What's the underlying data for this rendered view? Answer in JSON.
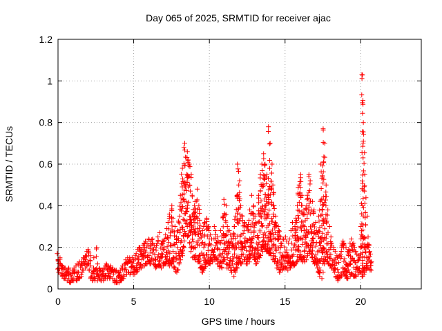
{
  "chart_data": {
    "type": "scatter",
    "title": "Day 065 of 2025, SRMTID for receiver ajac",
    "xlabel": "GPS time / hours",
    "ylabel": "SRMTID / TECUs",
    "xlim": [
      0,
      24
    ],
    "ylim": [
      0,
      1.2
    ],
    "x_ticks": [
      0,
      5,
      10,
      15,
      20
    ],
    "x_tick_labels": [
      "0",
      "5",
      "10",
      "15",
      "20"
    ],
    "y_ticks": [
      0,
      0.2,
      0.4,
      0.6,
      0.8,
      1.0,
      1.2
    ],
    "y_tick_labels": [
      "0",
      "0.2",
      "0.4",
      "0.6",
      "0.8",
      "1",
      "1.2"
    ],
    "grid": true,
    "marker": "+",
    "series_color": "#ff0000",
    "series": [
      {
        "name": "SRMTID",
        "x": [
          0.0,
          0.1,
          0.2,
          0.3,
          0.4,
          0.5,
          0.6,
          0.7,
          0.8,
          0.9,
          1.0,
          1.1,
          1.2,
          1.3,
          1.4,
          1.5,
          1.6,
          1.7,
          1.8,
          1.9,
          2.0,
          2.1,
          2.2,
          2.3,
          2.4,
          2.5,
          2.6,
          2.7,
          2.8,
          2.9,
          3.0,
          3.1,
          3.2,
          3.3,
          3.4,
          3.5,
          3.6,
          3.7,
          3.8,
          3.9,
          4.0,
          4.1,
          4.2,
          4.3,
          4.4,
          4.5,
          4.6,
          4.7,
          4.8,
          4.9,
          5.0,
          5.1,
          5.2,
          5.3,
          5.4,
          5.5,
          5.6,
          5.7,
          5.8,
          5.9,
          6.0,
          6.1,
          6.2,
          6.3,
          6.4,
          6.5,
          6.6,
          6.7,
          6.8,
          6.9,
          7.0,
          7.1,
          7.2,
          7.3,
          7.4,
          7.5,
          7.6,
          7.7,
          7.8,
          7.9,
          8.0,
          8.1,
          8.2,
          8.3,
          8.4,
          8.5,
          8.6,
          8.7,
          8.8,
          8.9,
          9.0,
          9.1,
          9.2,
          9.3,
          9.4,
          9.5,
          9.6,
          9.7,
          9.8,
          9.9,
          10.0,
          10.1,
          10.2,
          10.3,
          10.4,
          10.5,
          10.6,
          10.7,
          10.8,
          10.9,
          11.0,
          11.1,
          11.2,
          11.3,
          11.4,
          11.5,
          11.6,
          11.7,
          11.8,
          11.9,
          12.0,
          12.1,
          12.2,
          12.3,
          12.4,
          12.5,
          12.6,
          12.7,
          12.8,
          12.9,
          13.0,
          13.1,
          13.2,
          13.3,
          13.4,
          13.5,
          13.6,
          13.7,
          13.8,
          13.9,
          14.0,
          14.1,
          14.2,
          14.3,
          14.4,
          14.5,
          14.6,
          14.7,
          14.8,
          14.9,
          15.0,
          15.1,
          15.2,
          15.3,
          15.4,
          15.5,
          15.6,
          15.7,
          15.8,
          15.9,
          16.0,
          16.1,
          16.2,
          16.3,
          16.4,
          16.5,
          16.6,
          16.7,
          16.8,
          16.9,
          17.0,
          17.1,
          17.2,
          17.3,
          17.4,
          17.5,
          17.6,
          17.7,
          17.8,
          17.9,
          18.0,
          18.1,
          18.2,
          18.3,
          18.4,
          18.5,
          18.6,
          18.7,
          18.8,
          18.9,
          19.0,
          19.1,
          19.2,
          19.3,
          19.4,
          19.5,
          19.6,
          19.7,
          19.8,
          19.9,
          20.0,
          20.1,
          20.2,
          20.3,
          20.4,
          20.5,
          20.6,
          20.7,
          20.8,
          20.9,
          21.0,
          21.1
        ],
        "envelope_low": [
          0.08,
          0.08,
          0.07,
          0.06,
          0.05,
          0.05,
          0.04,
          0.05,
          0.03,
          0.04,
          0.04,
          0.05,
          0.04,
          0.05,
          0.05,
          0.06,
          0.08,
          0.09,
          0.1,
          0.11,
          0.12,
          0.09,
          0.05,
          0.04,
          0.04,
          0.05,
          0.04,
          0.05,
          0.04,
          0.04,
          0.04,
          0.05,
          0.06,
          0.05,
          0.05,
          0.06,
          0.05,
          0.04,
          0.03,
          0.03,
          0.03,
          0.04,
          0.04,
          0.05,
          0.06,
          0.07,
          0.08,
          0.08,
          0.07,
          0.08,
          0.07,
          0.07,
          0.08,
          0.09,
          0.1,
          0.1,
          0.11,
          0.11,
          0.12,
          0.12,
          0.13,
          0.12,
          0.13,
          0.12,
          0.11,
          0.1,
          0.11,
          0.11,
          0.1,
          0.11,
          0.12,
          0.12,
          0.13,
          0.12,
          0.11,
          0.12,
          0.13,
          0.1,
          0.08,
          0.09,
          0.12,
          0.14,
          0.16,
          0.2,
          0.26,
          0.3,
          0.25,
          0.22,
          0.18,
          0.15,
          0.15,
          0.14,
          0.13,
          0.13,
          0.1,
          0.08,
          0.09,
          0.1,
          0.12,
          0.12,
          0.12,
          0.13,
          0.13,
          0.15,
          0.14,
          0.12,
          0.12,
          0.1,
          0.1,
          0.13,
          0.14,
          0.12,
          0.1,
          0.1,
          0.09,
          0.08,
          0.06,
          0.08,
          0.1,
          0.12,
          0.13,
          0.12,
          0.13,
          0.14,
          0.12,
          0.12,
          0.13,
          0.15,
          0.17,
          0.16,
          0.14,
          0.12,
          0.13,
          0.15,
          0.16,
          0.18,
          0.2,
          0.19,
          0.18,
          0.17,
          0.17,
          0.16,
          0.14,
          0.13,
          0.12,
          0.1,
          0.08,
          0.08,
          0.09,
          0.1,
          0.1,
          0.1,
          0.09,
          0.1,
          0.11,
          0.12,
          0.11,
          0.12,
          0.13,
          0.14,
          0.15,
          0.14,
          0.13,
          0.13,
          0.14,
          0.16,
          0.18,
          0.17,
          0.15,
          0.13,
          0.12,
          0.1,
          0.08,
          0.06,
          0.05,
          0.08,
          0.12,
          0.14,
          0.13,
          0.12,
          0.11,
          0.1,
          0.09,
          0.08,
          0.05,
          0.04,
          0.05,
          0.06,
          0.08,
          0.07,
          0.06,
          0.05,
          0.05,
          0.06,
          0.07,
          0.06,
          0.06,
          0.06,
          0.07,
          0.08,
          0.08,
          0.06,
          0.07,
          0.08,
          0.09,
          0.1,
          0.09,
          0.09
        ],
        "envelope_high": [
          0.17,
          0.15,
          0.12,
          0.11,
          0.1,
          0.1,
          0.09,
          0.1,
          0.08,
          0.09,
          0.09,
          0.1,
          0.11,
          0.12,
          0.13,
          0.12,
          0.13,
          0.15,
          0.16,
          0.18,
          0.19,
          0.16,
          0.11,
          0.1,
          0.15,
          0.2,
          0.12,
          0.1,
          0.09,
          0.09,
          0.1,
          0.11,
          0.12,
          0.11,
          0.1,
          0.11,
          0.1,
          0.09,
          0.09,
          0.08,
          0.08,
          0.09,
          0.1,
          0.11,
          0.12,
          0.14,
          0.15,
          0.15,
          0.14,
          0.15,
          0.14,
          0.16,
          0.17,
          0.19,
          0.2,
          0.19,
          0.21,
          0.22,
          0.23,
          0.22,
          0.24,
          0.23,
          0.24,
          0.22,
          0.2,
          0.21,
          0.25,
          0.27,
          0.22,
          0.23,
          0.24,
          0.26,
          0.29,
          0.32,
          0.36,
          0.4,
          0.34,
          0.3,
          0.25,
          0.28,
          0.35,
          0.45,
          0.58,
          0.68,
          0.7,
          0.66,
          0.62,
          0.6,
          0.55,
          0.45,
          0.4,
          0.42,
          0.48,
          0.4,
          0.33,
          0.28,
          0.3,
          0.32,
          0.34,
          0.3,
          0.28,
          0.26,
          0.24,
          0.3,
          0.28,
          0.25,
          0.23,
          0.22,
          0.28,
          0.35,
          0.43,
          0.4,
          0.3,
          0.28,
          0.26,
          0.24,
          0.3,
          0.35,
          0.45,
          0.6,
          0.52,
          0.4,
          0.35,
          0.32,
          0.3,
          0.3,
          0.33,
          0.38,
          0.45,
          0.4,
          0.35,
          0.32,
          0.36,
          0.45,
          0.55,
          0.6,
          0.65,
          0.6,
          0.55,
          0.78,
          0.7,
          0.6,
          0.5,
          0.4,
          0.35,
          0.3,
          0.28,
          0.25,
          0.22,
          0.24,
          0.25,
          0.23,
          0.22,
          0.24,
          0.28,
          0.32,
          0.3,
          0.34,
          0.4,
          0.5,
          0.55,
          0.45,
          0.38,
          0.36,
          0.4,
          0.45,
          0.55,
          0.52,
          0.42,
          0.38,
          0.32,
          0.28,
          0.35,
          0.42,
          0.6,
          0.77,
          0.7,
          0.5,
          0.38,
          0.3,
          0.25,
          0.22,
          0.2,
          0.18,
          0.16,
          0.15,
          0.16,
          0.2,
          0.23,
          0.22,
          0.2,
          0.18,
          0.19,
          0.22,
          0.24,
          0.22,
          0.2,
          0.18,
          0.16,
          0.15,
          0.3,
          1.03,
          0.8,
          0.55,
          0.35,
          0.25,
          0.18,
          0.13
        ]
      }
    ]
  }
}
